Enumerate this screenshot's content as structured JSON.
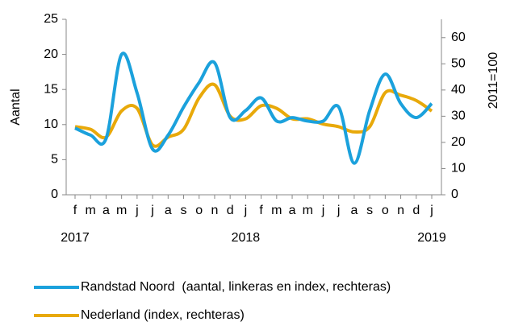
{
  "chart_data": {
    "type": "line",
    "categories": [
      "f",
      "m",
      "a",
      "m",
      "j",
      "j",
      "a",
      "s",
      "o",
      "n",
      "d",
      "j",
      "f",
      "m",
      "a",
      "m",
      "j",
      "j",
      "a",
      "s",
      "o",
      "n",
      "d",
      "j"
    ],
    "years": [
      "2017",
      null,
      null,
      null,
      null,
      null,
      null,
      null,
      null,
      null,
      null,
      "2018",
      null,
      null,
      null,
      null,
      null,
      null,
      null,
      null,
      null,
      null,
      null,
      "2019"
    ],
    "ylabel": "Aantal",
    "y2label": "2011=100",
    "ylim": [
      0,
      25
    ],
    "yticks": [
      0,
      5,
      10,
      15,
      20,
      25
    ],
    "y2lim": [
      0,
      67
    ],
    "y2ticks": [
      0,
      10,
      20,
      30,
      40,
      50,
      60
    ],
    "series": [
      {
        "name": "Randstad Noord  (aantal, linkeras en index, rechteras)",
        "color": "#1ba1dc",
        "axis": "y",
        "values": [
          9.5,
          8.5,
          8,
          20,
          14.5,
          6.5,
          8.5,
          12.5,
          16,
          18.8,
          11,
          12,
          13.8,
          10.5,
          11,
          10.5,
          10.5,
          12.5,
          4.5,
          12,
          17.2,
          13,
          11,
          13
        ]
      },
      {
        "name": "Nederland (index, rechteras)",
        "color": "#e8a90a",
        "axis": "y2",
        "values": [
          26,
          25,
          22,
          32,
          33,
          19,
          22,
          25,
          37,
          42,
          30,
          29,
          34,
          33,
          29,
          29,
          27,
          26,
          24,
          26,
          39,
          38,
          36,
          32
        ]
      }
    ]
  }
}
